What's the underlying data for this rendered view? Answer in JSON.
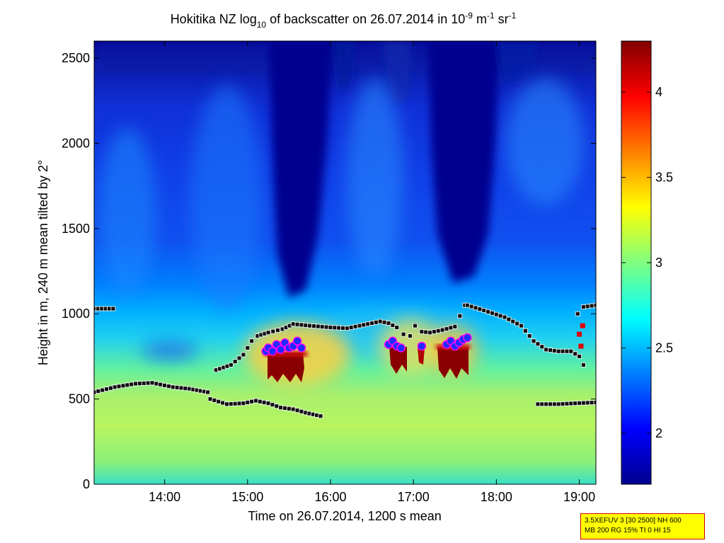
{
  "title": {
    "prefix": "Hokitika NZ log",
    "sub": "10",
    "mid": " of backscatter on 26.07.2014 in 10",
    "sup1": "-9",
    "unit1": " m",
    "sup2": "-1",
    "unit2": " sr",
    "sup3": "-1"
  },
  "xlabel": "Time on 26.07.2014, 1200 s mean",
  "ylabel": "Height in m, 240 m mean tilted by 2°",
  "info": {
    "line1": "3.5XEFUV 3 [30 2500] NH 600",
    "line2": "MB 200 RG 15% TI 0 HI 15"
  },
  "colors": {
    "cloud_marker_fill": "#1a2cff",
    "cloud_marker_edge": "#ff00ff",
    "layer_marker_fill": "#111111",
    "layer_marker_edge": "#ffffff",
    "rain_marker": "#e00000"
  },
  "chart_data": {
    "type": "heatmap",
    "colormap": "jet",
    "x_unit": "hours (time of day)",
    "xlim": [
      13.15,
      19.2
    ],
    "ylim": [
      0,
      2600
    ],
    "x_ticks": [
      {
        "v": 14,
        "label": "14:00"
      },
      {
        "v": 15,
        "label": "15:00"
      },
      {
        "v": 16,
        "label": "16:00"
      },
      {
        "v": 17,
        "label": "17:00"
      },
      {
        "v": 18,
        "label": "18:00"
      },
      {
        "v": 19,
        "label": "19:00"
      }
    ],
    "y_ticks": [
      {
        "v": 0,
        "label": "0"
      },
      {
        "v": 500,
        "label": "500"
      },
      {
        "v": 1000,
        "label": "1000"
      },
      {
        "v": 1500,
        "label": "1500"
      },
      {
        "v": 2000,
        "label": "2000"
      },
      {
        "v": 2500,
        "label": "2500"
      }
    ],
    "colorbar": {
      "range": [
        1.7,
        4.3
      ],
      "ticks": [
        {
          "v": 2,
          "label": "2"
        },
        {
          "v": 2.5,
          "label": "2.5"
        },
        {
          "v": 3,
          "label": "3"
        },
        {
          "v": 3.5,
          "label": "3.5"
        },
        {
          "v": 4,
          "label": "4"
        }
      ]
    },
    "upper_layer_m": [
      [
        13.15,
        1030
      ],
      [
        13.38,
        1030
      ],
      [
        14.62,
        670
      ],
      [
        14.8,
        700
      ],
      [
        14.95,
        760
      ],
      [
        15.05,
        840
      ],
      [
        15.12,
        870
      ],
      [
        15.25,
        890
      ],
      [
        15.42,
        910
      ],
      [
        15.55,
        940
      ],
      [
        15.75,
        930
      ],
      [
        16.0,
        920
      ],
      [
        16.2,
        915
      ],
      [
        16.35,
        930
      ],
      [
        16.5,
        945
      ],
      [
        16.6,
        955
      ],
      [
        16.7,
        945
      ],
      [
        16.8,
        920
      ],
      [
        16.88,
        880
      ],
      [
        16.96,
        870
      ],
      [
        17.02,
        930
      ],
      [
        17.1,
        895
      ],
      [
        17.2,
        890
      ],
      [
        17.35,
        905
      ],
      [
        17.5,
        925
      ],
      [
        17.62,
        1050
      ],
      [
        17.65,
        1050
      ],
      [
        17.85,
        1020
      ],
      [
        18.1,
        980
      ],
      [
        18.3,
        930
      ],
      [
        18.45,
        840
      ],
      [
        18.6,
        790
      ],
      [
        18.75,
        780
      ],
      [
        18.9,
        780
      ],
      [
        19.0,
        750
      ],
      [
        19.05,
        700
      ],
      [
        18.98,
        1000
      ],
      [
        19.05,
        1040
      ],
      [
        19.2,
        1050
      ]
    ],
    "lower_layer_m": [
      [
        13.15,
        540
      ],
      [
        13.4,
        570
      ],
      [
        13.65,
        590
      ],
      [
        13.85,
        595
      ],
      [
        14.1,
        570
      ],
      [
        14.3,
        560
      ],
      [
        14.52,
        540
      ],
      [
        14.55,
        500
      ],
      [
        14.75,
        470
      ],
      [
        14.95,
        475
      ],
      [
        15.1,
        490
      ],
      [
        15.25,
        475
      ],
      [
        15.4,
        450
      ],
      [
        15.55,
        440
      ],
      [
        15.7,
        420
      ],
      [
        15.88,
        400
      ],
      [
        18.5,
        470
      ],
      [
        18.75,
        470
      ],
      [
        18.95,
        475
      ],
      [
        19.2,
        480
      ]
    ],
    "cloud_base_m": [
      [
        15.22,
        780
      ],
      [
        15.25,
        800
      ],
      [
        15.3,
        780
      ],
      [
        15.35,
        820
      ],
      [
        15.4,
        790
      ],
      [
        15.45,
        830
      ],
      [
        15.5,
        800
      ],
      [
        15.55,
        810
      ],
      [
        15.6,
        840
      ],
      [
        15.65,
        800
      ],
      [
        16.7,
        820
      ],
      [
        16.75,
        840
      ],
      [
        16.8,
        810
      ],
      [
        16.85,
        800
      ],
      [
        17.1,
        810
      ],
      [
        17.4,
        820
      ],
      [
        17.45,
        840
      ],
      [
        17.5,
        810
      ],
      [
        17.55,
        830
      ],
      [
        17.6,
        850
      ],
      [
        17.65,
        860
      ]
    ],
    "rain_markers_m": [
      [
        19.0,
        880
      ],
      [
        19.02,
        810
      ],
      [
        19.04,
        930
      ]
    ]
  }
}
